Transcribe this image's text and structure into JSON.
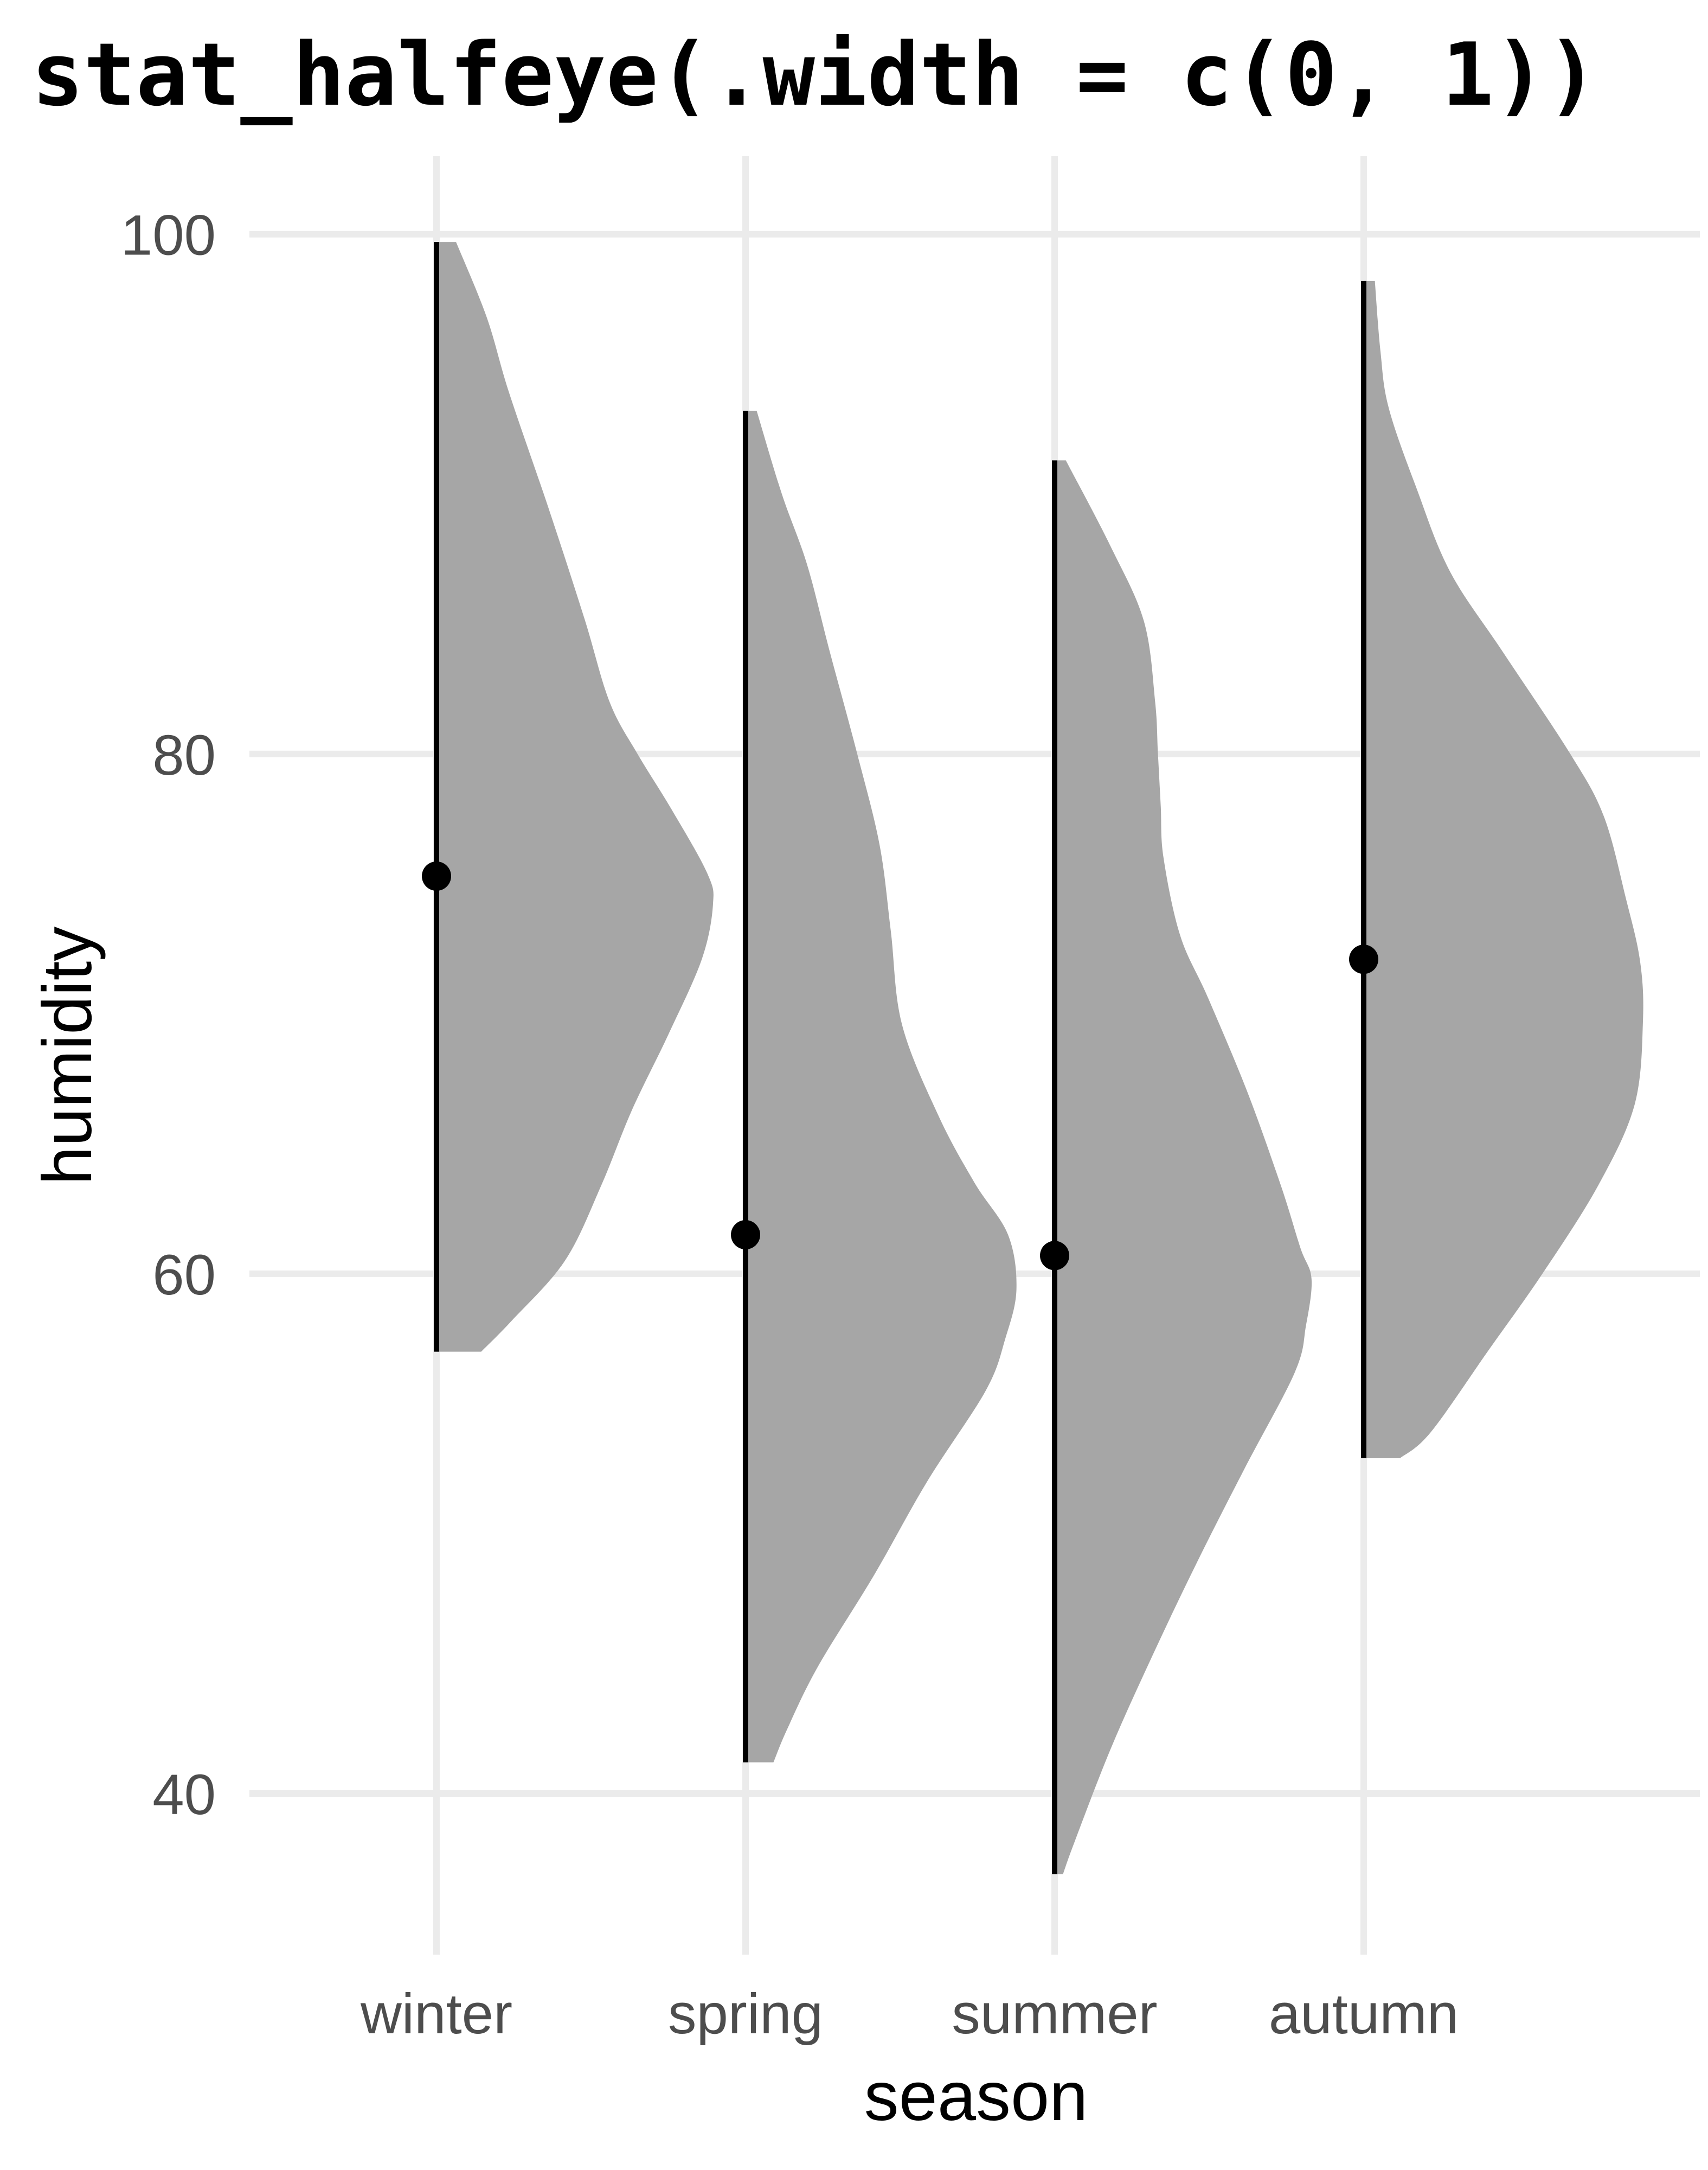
{
  "title": {
    "text": "stat_halfeye(.width = c(0, 1))"
  },
  "colors": {
    "background": "#ffffff",
    "slab_fill": "#a6a6a6",
    "interval": "#000000",
    "median_point": "#000000",
    "gridline": "#ebebeb",
    "tick_label": "#4d4d4d",
    "axis_title": "#000000",
    "title": "#000000"
  },
  "chart_data": {
    "type": "halfeye",
    "title": "stat_halfeye(.width = c(0, 1))",
    "xlabel": "season",
    "ylabel": "humidity",
    "categories": [
      "winter",
      "spring",
      "summer",
      "autumn"
    ],
    "y_ticks": [
      100,
      80,
      60,
      40
    ],
    "ylim": [
      33.8,
      103.0
    ],
    "grid": true,
    "legend": "none",
    "slab_width_scale": 0.9,
    "series": [
      {
        "category": "winter",
        "median": 75.3,
        "interval": [
          57.0,
          99.7
        ],
        "density": [
          [
            99.7,
            0.07
          ],
          [
            96.8,
            0.18
          ],
          [
            93.9,
            0.26
          ],
          [
            89.5,
            0.4
          ],
          [
            85.2,
            0.53
          ],
          [
            82.0,
            0.62
          ],
          [
            80.0,
            0.72
          ],
          [
            77.9,
            0.84
          ],
          [
            75.4,
            0.97
          ],
          [
            74.2,
            0.99
          ],
          [
            72.1,
            0.95
          ],
          [
            69.2,
            0.83
          ],
          [
            66.3,
            0.7
          ],
          [
            63.4,
            0.59
          ],
          [
            60.5,
            0.46
          ],
          [
            58.2,
            0.27
          ],
          [
            57.0,
            0.16
          ]
        ]
      },
      {
        "category": "spring",
        "median": 61.5,
        "interval": [
          41.2,
          93.2
        ],
        "density": [
          [
            93.2,
            0.04
          ],
          [
            90.0,
            0.13
          ],
          [
            87.3,
            0.22
          ],
          [
            84.0,
            0.3
          ],
          [
            80.0,
            0.4
          ],
          [
            76.5,
            0.48
          ],
          [
            73.2,
            0.52
          ],
          [
            69.6,
            0.56
          ],
          [
            66.1,
            0.69
          ],
          [
            63.5,
            0.82
          ],
          [
            61.5,
            0.94
          ],
          [
            59.4,
            0.97
          ],
          [
            57.5,
            0.93
          ],
          [
            55.5,
            0.86
          ],
          [
            52.0,
            0.65
          ],
          [
            48.4,
            0.46
          ],
          [
            44.9,
            0.26
          ],
          [
            42.5,
            0.15
          ],
          [
            41.2,
            0.1
          ]
        ]
      },
      {
        "category": "summer",
        "median": 60.7,
        "interval": [
          36.9,
          91.3
        ],
        "density": [
          [
            91.3,
            0.04
          ],
          [
            88.0,
            0.2
          ],
          [
            85.1,
            0.32
          ],
          [
            82.0,
            0.36
          ],
          [
            80.0,
            0.37
          ],
          [
            78.0,
            0.38
          ],
          [
            76.0,
            0.39
          ],
          [
            73.0,
            0.45
          ],
          [
            70.6,
            0.55
          ],
          [
            67.0,
            0.69
          ],
          [
            63.4,
            0.81
          ],
          [
            61.0,
            0.88
          ],
          [
            59.8,
            0.92
          ],
          [
            58.0,
            0.9
          ],
          [
            56.2,
            0.86
          ],
          [
            52.5,
            0.68
          ],
          [
            48.9,
            0.51
          ],
          [
            45.3,
            0.35
          ],
          [
            41.7,
            0.2
          ],
          [
            38.1,
            0.07
          ],
          [
            36.9,
            0.03
          ]
        ]
      },
      {
        "category": "autumn",
        "median": 72.1,
        "interval": [
          52.9,
          98.2
        ],
        "density": [
          [
            98.2,
            0.04
          ],
          [
            95.5,
            0.06
          ],
          [
            93.3,
            0.09
          ],
          [
            90.2,
            0.19
          ],
          [
            87.0,
            0.31
          ],
          [
            83.9,
            0.5
          ],
          [
            80.0,
            0.74
          ],
          [
            77.6,
            0.86
          ],
          [
            74.4,
            0.94
          ],
          [
            72.0,
            0.99
          ],
          [
            69.7,
            1.0
          ],
          [
            66.5,
            0.97
          ],
          [
            63.4,
            0.84
          ],
          [
            60.0,
            0.64
          ],
          [
            57.1,
            0.45
          ],
          [
            53.9,
            0.24
          ],
          [
            52.9,
            0.13
          ]
        ]
      }
    ]
  }
}
